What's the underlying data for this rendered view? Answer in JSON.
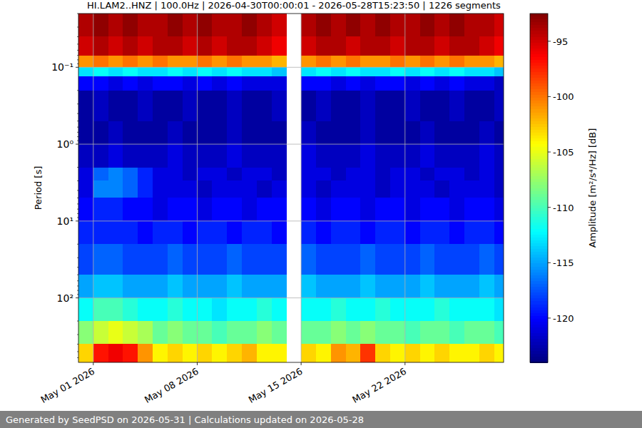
{
  "chart_data": {
    "type": "heatmap",
    "title": "HI.LAM2..HNZ | 100.0Hz | 2026-04-30T00:00:01 - 2026-05-28T15:23:50 | 1226 segments",
    "y_label": "Period [s]",
    "footer": "Generated by SeedPSD on 2026-05-31 | Calculations updated on 2026-05-28",
    "log": "y",
    "grid": true,
    "x": [
      "2026-04-30T00:00:00",
      "2026-05-01T00:00:00",
      "2026-05-02T00:00:00",
      "2026-05-03T00:00:00",
      "2026-05-04T00:00:00",
      "2026-05-05T00:00:00",
      "2026-05-06T00:00:00",
      "2026-05-07T00:00:00",
      "2026-05-08T00:00:00",
      "2026-05-09T00:00:00",
      "2026-05-10T00:00:00",
      "2026-05-11T00:00:00",
      "2026-05-12T00:00:00",
      "2026-05-13T00:00:00",
      "2026-05-14T00:00:00",
      "2026-05-15T00:00:00",
      "2026-05-16T00:00:00",
      "2026-05-17T00:00:00",
      "2026-05-18T00:00:00",
      "2026-05-19T00:00:00",
      "2026-05-20T00:00:00",
      "2026-05-21T00:00:00",
      "2026-05-22T00:00:00",
      "2026-05-23T00:00:00",
      "2026-05-24T00:00:00",
      "2026-05-25T00:00:00",
      "2026-05-26T00:00:00",
      "2026-05-27T00:00:00",
      "2026-05-28T00:00:00"
    ],
    "y_edges": [
      0.02,
      0.04,
      0.07,
      0.1,
      0.13,
      0.2,
      0.5,
      1,
      2,
      3,
      5,
      10,
      20,
      50,
      100,
      200,
      400,
      690
    ],
    "cells": [
      [
        -94,
        -93,
        -94,
        -93,
        -94,
        -94,
        -93,
        -94,
        -93,
        -94,
        -94,
        -93,
        -94,
        -95,
        null,
        -94,
        -93,
        -94,
        -93,
        -94,
        -93,
        -94,
        -94,
        -93,
        -94,
        -93,
        -94,
        -94,
        -95
      ],
      [
        -95,
        -94,
        -95,
        -94,
        -95,
        -94,
        -94,
        -95,
        -94,
        -95,
        -94,
        -94,
        -95,
        -96,
        null,
        -95,
        -94,
        -94,
        -95,
        -94,
        -94,
        -95,
        -94,
        -94,
        -95,
        -94,
        -94,
        -95,
        -96
      ],
      [
        -101,
        -100,
        -101,
        -100,
        -101,
        -100,
        -101,
        -101,
        -100,
        -101,
        -100,
        -101,
        -101,
        -102,
        null,
        -101,
        -100,
        -101,
        -100,
        -101,
        -101,
        -100,
        -101,
        -100,
        -101,
        -100,
        -101,
        -101,
        -102
      ],
      [
        -113,
        -112,
        -113,
        -112,
        -113,
        -113,
        -112,
        -113,
        -112,
        -113,
        -112,
        -113,
        -113,
        -114,
        null,
        -113,
        -112,
        -113,
        -112,
        -113,
        -113,
        -112,
        -113,
        -112,
        -113,
        -112,
        -113,
        -113,
        -114
      ],
      [
        -120,
        -120,
        -121,
        -120,
        -121,
        -120,
        -120,
        -121,
        -120,
        -121,
        -120,
        -121,
        -121,
        -121,
        null,
        -120,
        -120,
        -121,
        -120,
        -121,
        -120,
        -120,
        -121,
        -120,
        -121,
        -120,
        -121,
        -121,
        -122
      ],
      [
        -123,
        -122,
        -123,
        -123,
        -122,
        -123,
        -123,
        -122,
        -123,
        -123,
        -122,
        -123,
        -123,
        -122,
        null,
        -123,
        -122,
        -123,
        -123,
        -122,
        -123,
        -123,
        -122,
        -123,
        -123,
        -122,
        -123,
        -123,
        -122
      ],
      [
        -123,
        -123,
        -122,
        -123,
        -123,
        -123,
        -122,
        -123,
        -123,
        -123,
        -122,
        -123,
        -123,
        -123,
        null,
        -122,
        -123,
        -123,
        -123,
        -122,
        -123,
        -123,
        -123,
        -122,
        -123,
        -123,
        -123,
        -122,
        -123
      ],
      [
        -122,
        -122,
        -121,
        -122,
        -122,
        -122,
        -121,
        -122,
        -122,
        -122,
        -121,
        -122,
        -122,
        -122,
        null,
        -121,
        -122,
        -122,
        -122,
        -121,
        -122,
        -122,
        -122,
        -121,
        -122,
        -122,
        -122,
        -121,
        -122
      ],
      [
        -121,
        -117,
        -116,
        -117,
        -119,
        -121,
        -121,
        -122,
        -121,
        -121,
        -122,
        -121,
        -121,
        -122,
        null,
        -121,
        -121,
        -122,
        -121,
        -121,
        -122,
        -121,
        -121,
        -122,
        -121,
        -121,
        -122,
        -121,
        -122
      ],
      [
        -121,
        -116,
        -116,
        -117,
        -119,
        -121,
        -121,
        -121,
        -122,
        -121,
        -121,
        -121,
        -122,
        -121,
        null,
        -121,
        -122,
        -121,
        -121,
        -121,
        -122,
        -121,
        -121,
        -121,
        -122,
        -121,
        -121,
        -121,
        -122
      ],
      [
        -120,
        -119,
        -119,
        -120,
        -120,
        -121,
        -120,
        -120,
        -121,
        -120,
        -120,
        -121,
        -120,
        -120,
        null,
        -120,
        -121,
        -120,
        -120,
        -121,
        -120,
        -120,
        -121,
        -120,
        -120,
        -121,
        -120,
        -120,
        -121
      ],
      [
        -119,
        -119,
        -119,
        -119,
        -120,
        -119,
        -119,
        -120,
        -119,
        -119,
        -120,
        -119,
        -119,
        -120,
        null,
        -119,
        -120,
        -119,
        -119,
        -120,
        -119,
        -119,
        -120,
        -119,
        -119,
        -120,
        -119,
        -119,
        -120
      ],
      [
        -118,
        -117,
        -117,
        -118,
        -118,
        -118,
        -117,
        -118,
        -118,
        -118,
        -117,
        -118,
        -118,
        -118,
        null,
        -117,
        -118,
        -118,
        -118,
        -117,
        -118,
        -118,
        -118,
        -117,
        -118,
        -118,
        -118,
        -117,
        -118
      ],
      [
        -115,
        -114,
        -114,
        -115,
        -115,
        -115,
        -114,
        -115,
        -115,
        -115,
        -114,
        -115,
        -115,
        -115,
        null,
        -114,
        -115,
        -115,
        -115,
        -114,
        -115,
        -115,
        -115,
        -114,
        -115,
        -115,
        -115,
        -114,
        -115
      ],
      [
        -112,
        -110,
        -110,
        -111,
        -112,
        -112,
        -111,
        -112,
        -112,
        -113,
        -112,
        -112,
        -111,
        -112,
        null,
        -112,
        -112,
        -111,
        -112,
        -112,
        -111,
        -112,
        -112,
        -112,
        -111,
        -112,
        -112,
        -112,
        -113
      ],
      [
        -108,
        -106,
        -105,
        -106,
        -107,
        -109,
        -108,
        -109,
        -109,
        -110,
        -109,
        -109,
        -108,
        -109,
        null,
        -109,
        -109,
        -108,
        -109,
        -108,
        -109,
        -109,
        -110,
        -109,
        -109,
        -110,
        -109,
        -109,
        -110
      ],
      [
        -103,
        -97,
        -96,
        -97,
        -101,
        -104,
        -103,
        -104,
        -103,
        -104,
        -103,
        -102,
        -104,
        -104,
        null,
        -103,
        -104,
        -101,
        -102,
        -98,
        -103,
        -104,
        -103,
        -104,
        -103,
        -104,
        -104,
        -103,
        -104
      ]
    ],
    "xlim": [
      "2026-04-30T00:00:01",
      "2026-05-28T15:23:50"
    ],
    "xticks": [
      {
        "value": "2026-05-01T00:00:00",
        "label": "May 01 2026"
      },
      {
        "value": "2026-05-08T00:00:00",
        "label": "May 08 2026"
      },
      {
        "value": "2026-05-15T00:00:00",
        "label": "May 15 2026"
      },
      {
        "value": "2026-05-22T00:00:00",
        "label": "May 22 2026"
      }
    ],
    "ylim": [
      0.02,
      690
    ],
    "yticks": [
      {
        "value": 0.1,
        "label": "10⁻¹"
      },
      {
        "value": 1,
        "label": "10⁰"
      },
      {
        "value": 10,
        "label": "10¹"
      },
      {
        "value": 100,
        "label": "10²"
      }
    ],
    "colorbar": {
      "label": "Amplitude [m²/s⁴/Hz] [dB]",
      "range": [
        -124,
        -92.5
      ],
      "ticks": [
        -95,
        -100,
        -105,
        -110,
        -115,
        -120
      ]
    }
  }
}
